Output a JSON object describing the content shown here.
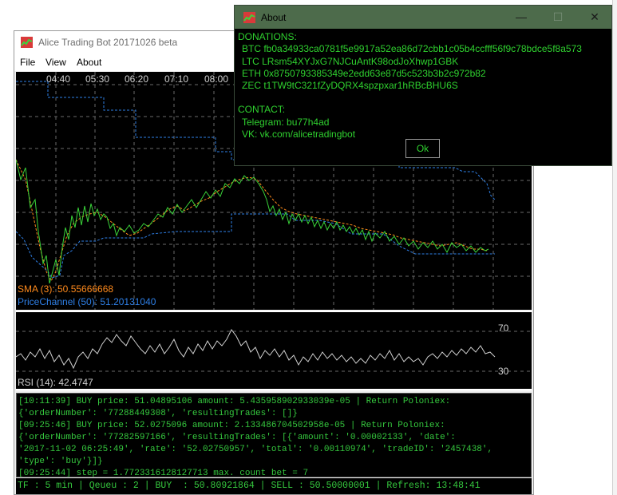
{
  "main_window": {
    "title": "Alice Trading Bot 20171026 beta",
    "menu": [
      "File",
      "View",
      "About"
    ]
  },
  "chart": {
    "time_labels": [
      "04:40",
      "05:30",
      "06:20",
      "07:10",
      "08:00"
    ],
    "sma_label": "SMA (3): 50.55666668",
    "pc_label": "PriceChannel (50): 51.20131040",
    "rsi_label": "RSI (14): 42.4747",
    "rsi_upper": "70",
    "rsi_lower": "30",
    "colors": {
      "price": "#39d339",
      "sma": "#ff8a1c",
      "channel": "#2e7fe6",
      "rsi": "#cfcfcf",
      "grid": "#6a6a6a"
    }
  },
  "log": [
    "[10:11:39] BUY price: 51.04895106 amount: 5.435958902933039e-05 | Return Poloniex:",
    "{'orderNumber': '77288449308', 'resultingTrades': []}",
    "[09:25:46] BUY price: 52.0275096 amount: 2.133486704502958e-05 | Return Poloniex:",
    "{'orderNumber': '77282597166', 'resultingTrades': [{'amount': '0.00002133', 'date':",
    "'2017-11-02 06:25:49', 'rate': '52.02750957', 'total': '0.00110974', 'tradeID': '2457438',",
    "'type': 'buy'}]}",
    "[09:25:44] step = 1.7723316128127713 max. count bet = 7"
  ],
  "status_bar": "TF : 5 min | Qeueu : 2 | BUY  : 50.80921864 | SELL : 50.50000001 | Refresh: 13:48:41",
  "about_dialog": {
    "title": "About",
    "donations_header": "DONATIONS:",
    "btc": "BTC fb0a34933ca0781f5e9917a52ea86d72cbb1c05b4ccfff56f9c78bdce5f8a573",
    "ltc": "LTC LRsm54XYJxG7NJCuAntK98odJoXhwp1GBK",
    "eth": "ETH 0x8750793385349e2edd63e87d5c523b3b2c972b82",
    "zec": "ZEC t1TW9tC321fZyDQRX4spzpxar1hRBcBHU6S",
    "contact_header": "CONTACT:",
    "telegram": "Telegram: bu77h4ad",
    "vk": "VK: vk.com/alicetradingbot",
    "ok_label": "Ok",
    "minimize": "—",
    "maximize": "☐",
    "close": "✕"
  }
}
